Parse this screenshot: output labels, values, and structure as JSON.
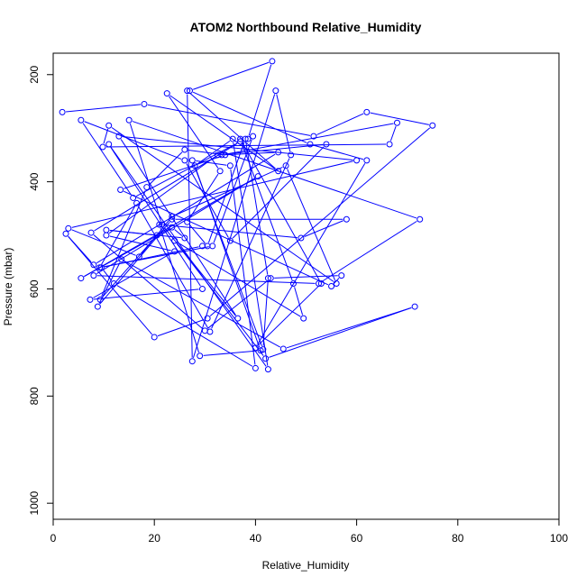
{
  "chart_data": {
    "type": "line",
    "title": "ATOM2 Northbound Relative_Humidity",
    "xlabel": "Relative_Humidity",
    "ylabel": "Pressure (mbar)",
    "xlim": [
      0,
      100
    ],
    "ylim": [
      1030,
      160
    ],
    "y_inverted": true,
    "x_ticks": [
      0,
      20,
      40,
      60,
      80,
      100
    ],
    "y_ticks": [
      200,
      400,
      600,
      800,
      1000
    ],
    "grid": false,
    "legend": "none",
    "series_color": "#0000ff",
    "series": [
      {
        "x": [
          1.8,
          18,
          51.5,
          62,
          75,
          30.5,
          20,
          2.5,
          8,
          44.5,
          33.3,
          68,
          66.5,
          9.8,
          11,
          56,
          46,
          23.5,
          17,
          3,
          60,
          13,
          36.5,
          21.5,
          15,
          72.5,
          52.5,
          8,
          40.5,
          5.5,
          23.5,
          26,
          10.5,
          20.5,
          9.3,
          18.5,
          26,
          34,
          13.3,
          55,
          57,
          43,
          30,
          7.5,
          37,
          15.8,
          5.5,
          26,
          35,
          54,
          32.5,
          10.5,
          24,
          7.3,
          29.5,
          11,
          42.5,
          35.5,
          28,
          41,
          29,
          21,
          49,
          58,
          23.5,
          8.8,
          13.5,
          45.5,
          71.5,
          42,
          24,
          49.5,
          47.5,
          37,
          53,
          40,
          62,
          50.8,
          27,
          43.3,
          38.5,
          39.5,
          31.5,
          9.2,
          16.5,
          31,
          47,
          44,
          27.5,
          26.5,
          44.5,
          22.5,
          33,
          26.5,
          30.5,
          38,
          42.5,
          41.5,
          27.5,
          35,
          40,
          12,
          9.5,
          29.5
        ],
        "y": [
          270,
          255,
          315,
          270,
          295,
          655,
          690,
          497,
          555,
          345,
          350,
          290,
          330,
          335,
          295,
          590,
          370,
          465,
          540,
          487,
          360,
          315,
          655,
          480,
          285,
          470,
          590,
          575,
          390,
          580,
          485,
          505,
          490,
          500,
          620,
          410,
          340,
          350,
          415,
          595,
          575,
          580,
          678,
          495,
          325,
          430,
          285,
          360,
          510,
          330,
          350,
          500,
          530,
          620,
          600,
          330,
          750,
          320,
          370,
          715,
          725,
          480,
          505,
          470,
          470,
          633,
          545,
          712,
          633,
          730,
          510,
          655,
          590,
          320,
          590,
          710,
          360,
          330,
          230,
          175,
          320,
          315,
          520,
          560,
          440,
          680,
          350,
          230,
          735,
          230,
          380,
          235,
          380,
          475,
          520,
          320,
          580,
          713,
          360,
          370,
          748,
          590,
          560,
          520
        ]
      }
    ]
  }
}
